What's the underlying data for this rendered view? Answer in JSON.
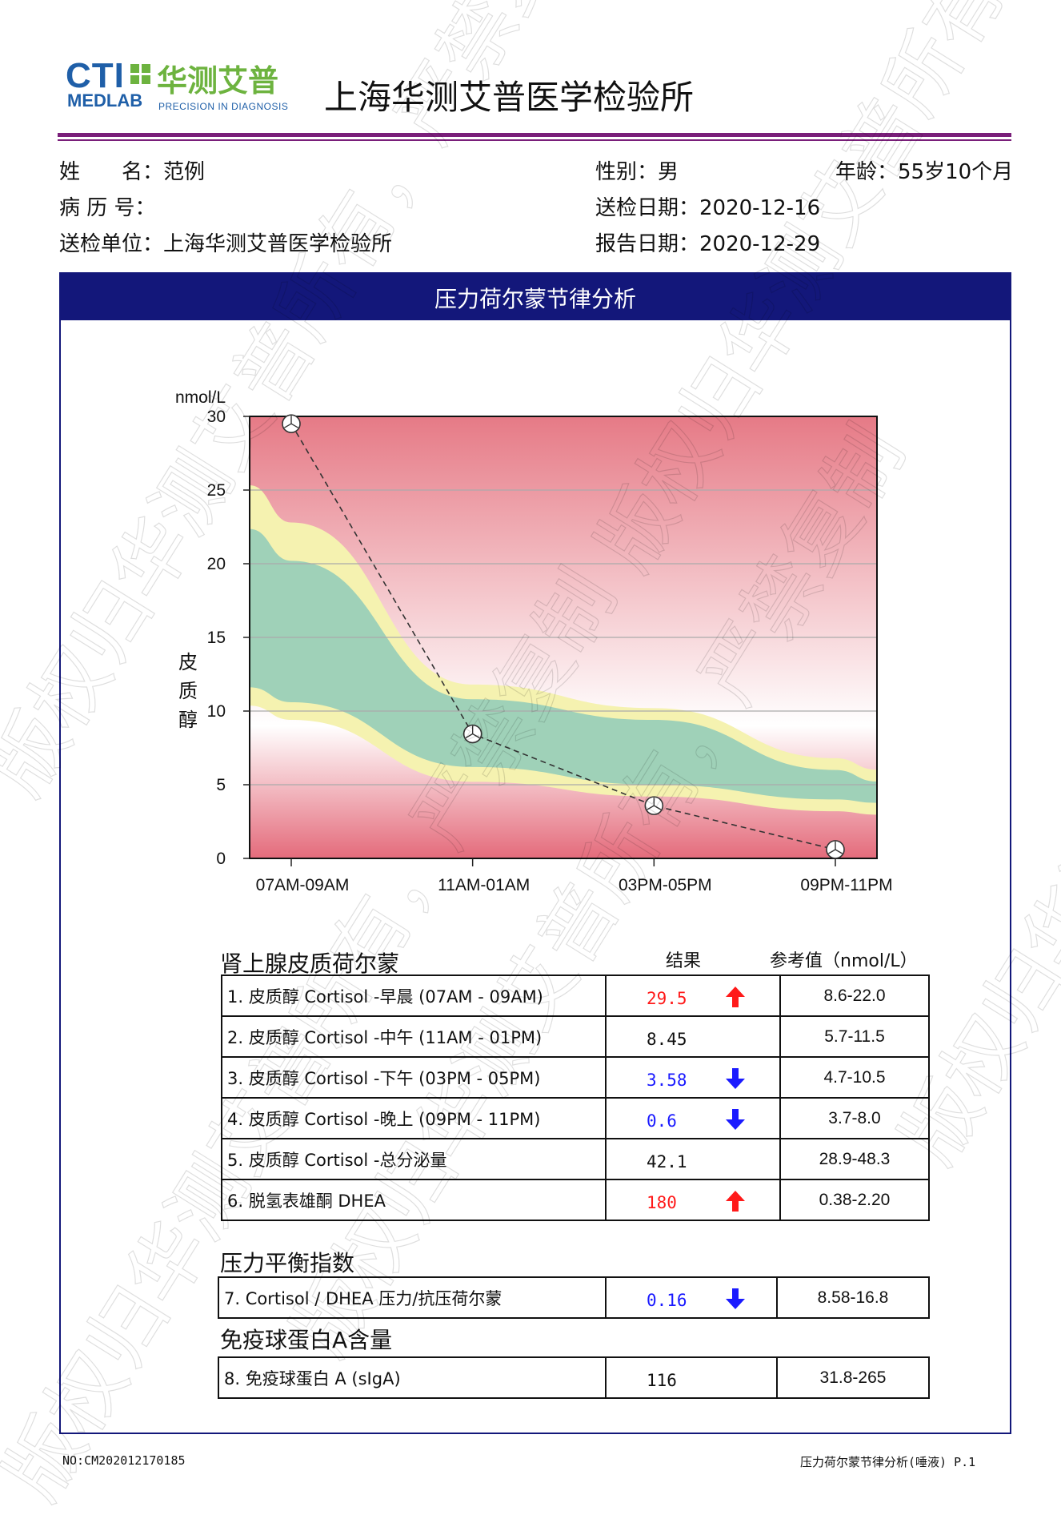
{
  "header": {
    "logo_cti": "CTI",
    "logo_cn": "华测艾普",
    "logo_medlab": "MEDLAB",
    "logo_tagline": "PRECISION IN DIAGNOSIS",
    "lab_title": "上海华测艾普医学检验所"
  },
  "patient": {
    "name_label": "姓　　名：",
    "name_value": "范例",
    "record_label": "病 历 号：",
    "record_value": "",
    "unit_label": "送检单位：",
    "unit_value": "上海华测艾普医学检验所",
    "sex_label": "性别：",
    "sex_value": "男",
    "sent_label": "送检日期：",
    "sent_value": "2020-12-16",
    "report_label": "报告日期：",
    "report_value": "2020-12-29",
    "age_label": "年龄：",
    "age_value": "55岁10个月"
  },
  "section_title": "压力荷尔蒙节律分析",
  "chart_data": {
    "type": "line",
    "ylabel_unit": "nmol/L",
    "ylabel": "皮质醇",
    "ylim": [
      0,
      30
    ],
    "yticks": [
      "0",
      "5",
      "10",
      "15",
      "20",
      "25",
      "30"
    ],
    "categories": [
      "07AM-09AM",
      "11AM-01AM",
      "03PM-05PM",
      "09PM-11PM"
    ],
    "series": [
      {
        "values": [
          29.5,
          8.45,
          3.58,
          0.6
        ]
      }
    ],
    "grid": true,
    "bands": {
      "yellow_upper": [
        22.8,
        11.8,
        10.2,
        6.8
      ],
      "green_upper": [
        20.2,
        10.8,
        9.4,
        6.0
      ],
      "green_lower": [
        10.6,
        6.2,
        5.0,
        4.0
      ],
      "yellow_lower": [
        9.4,
        5.2,
        4.2,
        3.2
      ]
    },
    "colors": {
      "top_red": "#e67a86",
      "mid_pink": "#ffffff",
      "bottom_red": "#e46b7b",
      "yellow": "#f5f2b0",
      "green": "#9fd1b8",
      "line": "#333333"
    }
  },
  "tables": {
    "col_result": "结果",
    "col_ref": "参考值（nmol/L）",
    "groups": [
      {
        "title": "肾上腺皮质荷尔蒙",
        "rows": [
          {
            "name": "1. 皮质醇 Cortisol -早晨 (07AM - 09AM)",
            "value": "29.5",
            "flag": "up",
            "ref": "8.6-22.0"
          },
          {
            "name": "2. 皮质醇 Cortisol -中午 (11AM - 01PM)",
            "value": "8.45",
            "flag": "",
            "ref": "5.7-11.5"
          },
          {
            "name": "3. 皮质醇 Cortisol -下午 (03PM - 05PM)",
            "value": "3.58",
            "flag": "down",
            "ref": "4.7-10.5"
          },
          {
            "name": "4. 皮质醇 Cortisol -晚上 (09PM - 11PM)",
            "value": "0.6",
            "flag": "down",
            "ref": "3.7-8.0"
          },
          {
            "name": "5. 皮质醇 Cortisol -总分泌量",
            "value": "42.1",
            "flag": "",
            "ref": "28.9-48.3"
          },
          {
            "name": "6. 脱氢表雄酮 DHEA",
            "value": "180",
            "flag": "up",
            "ref": "0.38-2.20"
          }
        ]
      },
      {
        "title": "压力平衡指数",
        "rows": [
          {
            "name": "7. Cortisol / DHEA 压力/抗压荷尔蒙",
            "value": "0.16",
            "flag": "down",
            "ref": "8.58-16.8"
          }
        ]
      },
      {
        "title": "免疫球蛋白A含量",
        "rows": [
          {
            "name": "8. 免疫球蛋白 A (sIgA)",
            "value": "116",
            "flag": "",
            "ref": "31.8-265"
          }
        ]
      }
    ]
  },
  "footer": {
    "report_no": "NO:CM202012170185",
    "page": "压力荷尔蒙节律分析(唾液) P.1"
  },
  "watermark": {
    "text": "版权归华测艾普所有，严禁复制"
  }
}
